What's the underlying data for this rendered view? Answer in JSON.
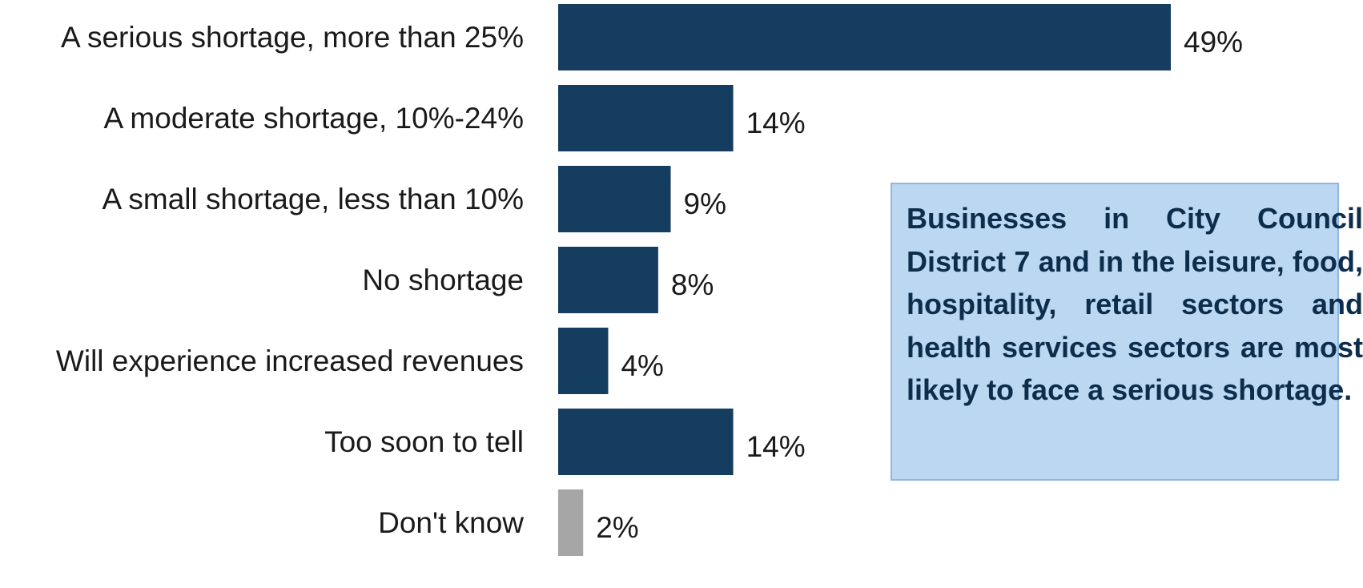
{
  "chart_data": {
    "type": "bar",
    "orientation": "horizontal",
    "categories": [
      "A serious shortage, more than 25%",
      "A moderate shortage, 10%-24%",
      "A small shortage, less than 10%",
      "No shortage",
      "Will experience increased revenues",
      "Too soon to tell",
      "Don't know"
    ],
    "values": [
      49,
      14,
      9,
      8,
      4,
      14,
      2
    ],
    "value_labels": [
      "49%",
      "14%",
      "9%",
      "8%",
      "4%",
      "14%",
      "2%"
    ],
    "bar_colors": [
      "#143d60",
      "#143d60",
      "#143d60",
      "#143d60",
      "#143d60",
      "#143d60",
      "#a6a6a6"
    ],
    "xlim": [
      0,
      49
    ],
    "grid": false,
    "legend": "none",
    "annotation": "Businesses in City Council District 7 and in the leisure, food, hospitality, retail sectors and health services sectors are most likely to face a serious shortage."
  },
  "colors": {
    "bar": "#143d60",
    "bar_dont_know": "#a6a6a6",
    "callout_bg": "#bcd7f2",
    "callout_border": "#8fb6e0",
    "callout_text": "#0d2d4c",
    "text": "#1a1a1a"
  }
}
